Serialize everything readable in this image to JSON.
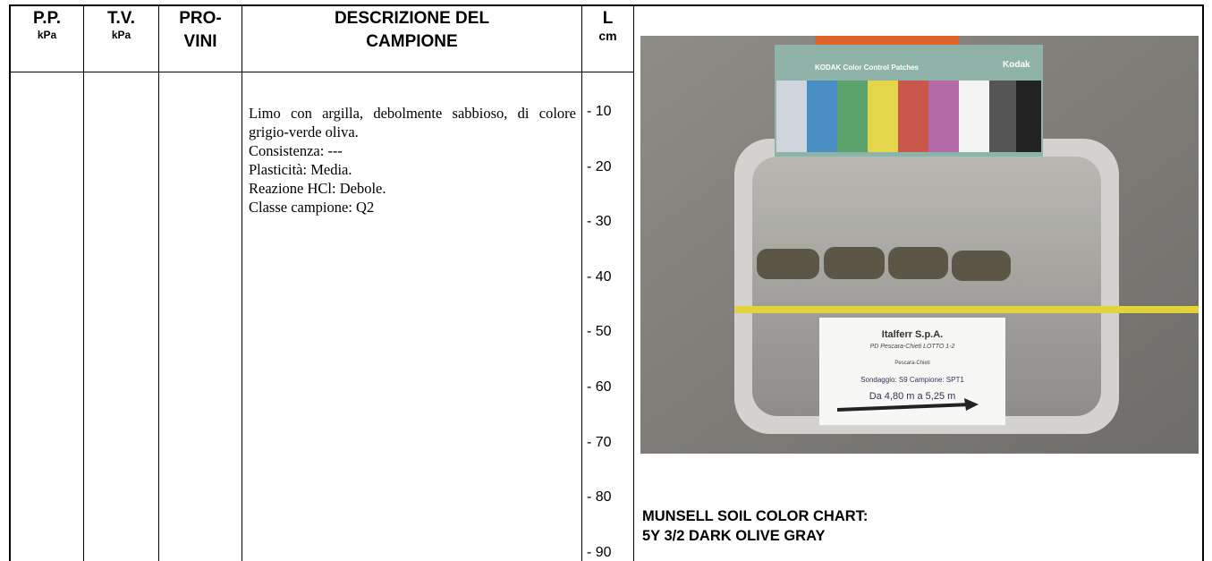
{
  "header": {
    "pp": {
      "title": "P.P.",
      "unit": "kPa"
    },
    "tv": {
      "title": "T.V.",
      "unit": "kPa"
    },
    "provini": {
      "title": [
        "PRO-",
        "VINI"
      ]
    },
    "descrizione": {
      "title": [
        "DESCRIZIONE DEL",
        "CAMPIONE"
      ]
    },
    "length": {
      "title": "L",
      "unit": "cm"
    }
  },
  "description": {
    "summary": "Limo con argilla, debolmente sabbioso, di colore grigio-verde oliva.",
    "lines": [
      "Consistenza: ---",
      "Plasticità: Media.",
      "Reazione HCl: Debole.",
      "Classe campione: Q2"
    ]
  },
  "depth_marks": [
    "- 10",
    "- 20",
    "- 30",
    "- 40",
    "- 50",
    "- 60",
    "- 70",
    "- 80",
    "- 90"
  ],
  "photo": {
    "chart_label": "KODAK Color Control Patches",
    "chart_brand": "Kodak",
    "card": [
      "Italferr S.p.A.",
      "PD Pescara-Chieti LOTTO 1-2",
      "Pescara-Chieti",
      "Sondaggio: S9   Campione: SPT1",
      "Da 4,80 m a 5,25 m"
    ]
  },
  "munsell": [
    "MUNSELL SOIL COLOR CHART:",
    "5Y 3/2 DARK OLIVE GRAY"
  ]
}
